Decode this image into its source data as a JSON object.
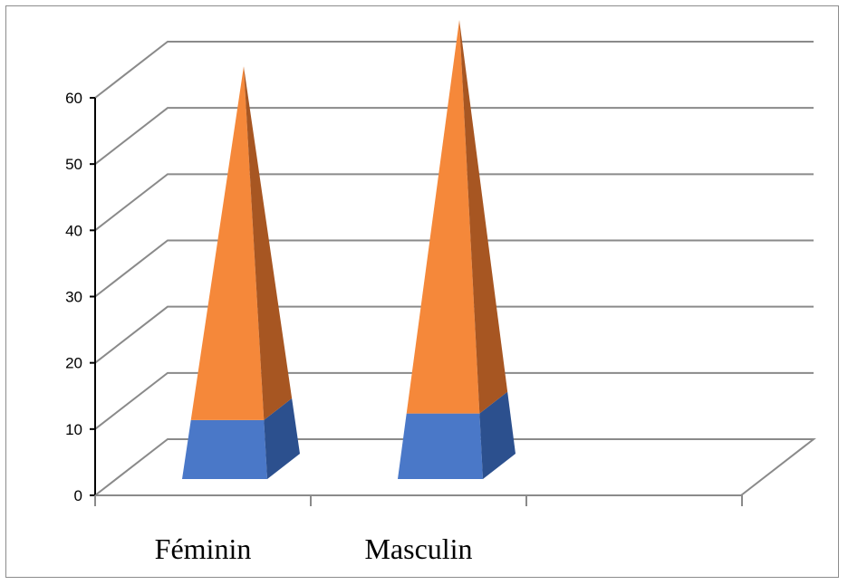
{
  "chart_data": {
    "type": "bar",
    "categories": [
      "Féminin",
      "Masculin"
    ],
    "series": [
      {
        "values": [
          8,
          9
        ],
        "color": "#4a78c8"
      },
      {
        "values": [
          48,
          54
        ],
        "color": "#f5883a"
      }
    ],
    "ylim": [
      0,
      60
    ],
    "yticks": [
      0,
      10,
      20,
      30,
      40,
      50,
      60
    ],
    "grid": true,
    "legend": false
  },
  "colors": {
    "base_front": "#4a78c8",
    "base_side": "#2c508e",
    "top_front": "#f5883a",
    "top_side": "#a75622",
    "gridline": "#8a8a8a",
    "axis": "#000000"
  }
}
